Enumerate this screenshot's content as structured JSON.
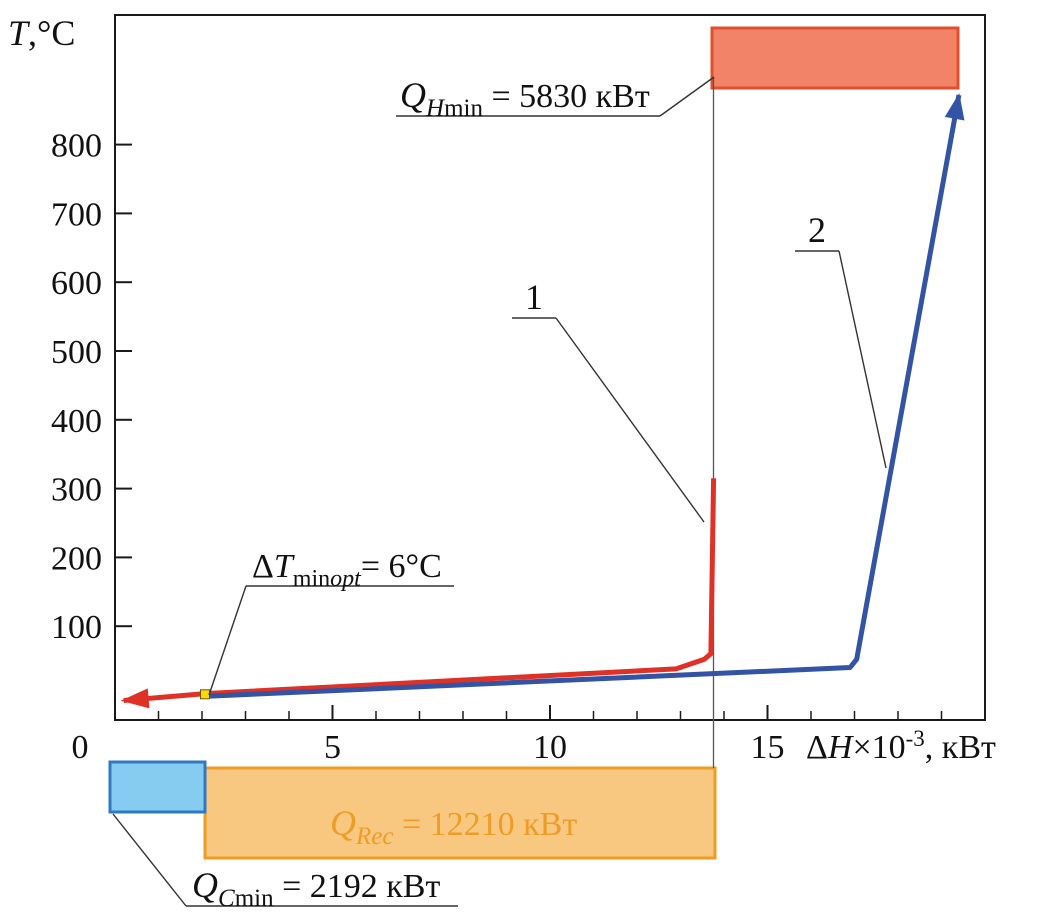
{
  "figure": {
    "y_axis_title": {
      "sym": "T",
      "rest": ",°C"
    },
    "x_axis_title": {
      "delta": "Δ",
      "sym": "H",
      "times": "×10",
      "sup": "-3",
      "rest": ", кВт"
    }
  },
  "annotations": {
    "q_hmin": {
      "q": "Q",
      "sub_italic": "H",
      "sub": "min",
      "value": " = 5830 кВт"
    },
    "q_rec": {
      "q": "Q",
      "sub_italic": "Rec",
      "value": " = 12210 кВт"
    },
    "q_cmin": {
      "q": "Q",
      "sub_italic": "C",
      "sub": "min",
      "value": " = 2192 кВт"
    },
    "dt_min": {
      "delta": "Δ",
      "sym": "T",
      "sub": "min",
      "sub_italic": "opt",
      "value": "= 6°C"
    },
    "curve1_label": "1",
    "curve2_label": "2"
  },
  "chart_data": {
    "type": "line",
    "title": "",
    "xlabel": "ΔH×10⁻³, кВт",
    "ylabel": "T,°C",
    "xlim": [
      0,
      20
    ],
    "ylim": [
      -30,
      1020
    ],
    "xticks": [
      0,
      5,
      10,
      15
    ],
    "yticks": [
      100,
      200,
      300,
      400,
      500,
      600,
      700,
      800
    ],
    "x_minor_tick_step": 1,
    "grid": false,
    "legend_position": "none",
    "series": [
      {
        "name": "hot-composite-curve",
        "label": "1",
        "color": "#e03127",
        "arrow": "start",
        "points": [
          [
            0.2,
            -8
          ],
          [
            2.07,
            2
          ],
          [
            12.9,
            38
          ],
          [
            13.55,
            52
          ],
          [
            13.7,
            60
          ],
          [
            13.76,
            315
          ]
        ]
      },
      {
        "name": "cold-composite-curve",
        "label": "2",
        "color": "#3353a4",
        "arrow": "end",
        "points": [
          [
            2.05,
            -2
          ],
          [
            16.9,
            40
          ],
          [
            17.05,
            52
          ],
          [
            19.4,
            872
          ]
        ]
      }
    ],
    "pinch_point": {
      "x": 2.07,
      "t": 1,
      "dt_min_opt_c": 6
    },
    "energy_targets": {
      "q_hmin_kw": 5830,
      "q_rec_kw": 12210,
      "q_cmin_kw": 2192
    },
    "colors": {
      "hot_utility_fill": "#f28268",
      "hot_utility_stroke": "#e0502e",
      "recovery_fill": "#f8c880",
      "recovery_stroke": "#ee9c26",
      "cold_utility_fill": "#86ccf1",
      "cold_utility_stroke": "#2f78c2",
      "pinch_marker": "#ffd800"
    }
  }
}
